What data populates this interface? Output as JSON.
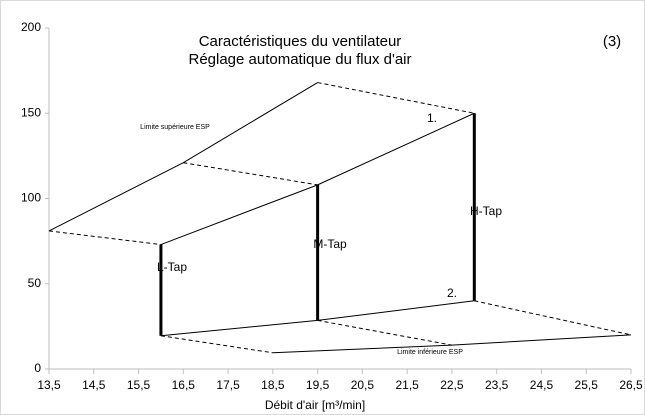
{
  "chart_data": {
    "type": "line",
    "title": "Caractéristiques du ventilateur",
    "subtitle": "Réglage automatique du flux d'air",
    "figure_number": "(3)",
    "x_label": "Débit d'air [m³/min]",
    "annotations": [
      "Limite supérieure ESP",
      "Limite inférieure ESP",
      "1.",
      "2.",
      "L-Tap",
      "M-Tap",
      "H-Tap"
    ],
    "xlim": [
      13.5,
      26.5
    ],
    "xticks": [
      {
        "value": 13.5,
        "label": "13,5"
      },
      {
        "value": 14.5,
        "label": "14,5"
      },
      {
        "value": 15.5,
        "label": "15,5"
      },
      {
        "value": 16.5,
        "label": "16,5"
      },
      {
        "value": 17.5,
        "label": "17,5"
      },
      {
        "value": 18.5,
        "label": "18,5"
      },
      {
        "value": 19.5,
        "label": "19,5"
      },
      {
        "value": 20.5,
        "label": "20,5"
      },
      {
        "value": 21.5,
        "label": "21,5"
      },
      {
        "value": 22.5,
        "label": "22,5"
      },
      {
        "value": 23.5,
        "label": "23,5"
      },
      {
        "value": 24.5,
        "label": "24,5"
      },
      {
        "value": 25.5,
        "label": "25,5"
      },
      {
        "value": 26.5,
        "label": "26,5"
      }
    ],
    "ylim": [
      0,
      200
    ],
    "yticks": [
      0,
      50,
      100,
      150,
      200
    ],
    "grid": false,
    "series": [
      {
        "color": "#000000",
        "dash": false,
        "width": 1,
        "x": [
          13.5,
          16.5,
          19.5
        ],
        "values": [
          81,
          121,
          168
        ]
      },
      {
        "color": "#000000",
        "dash": false,
        "width": 1,
        "x": [
          16,
          19.5,
          23
        ],
        "values": [
          73,
          108,
          150
        ]
      },
      {
        "color": "#000000",
        "dash": false,
        "width": 1,
        "x": [
          16,
          19.5,
          23
        ],
        "values": [
          19.5,
          28.5,
          40
        ]
      },
      {
        "color": "#000000",
        "dash": false,
        "width": 1,
        "x": [
          18.5,
          22.5,
          26.5
        ],
        "values": [
          9.5,
          14,
          20
        ]
      },
      {
        "color": "#000000",
        "dash": true,
        "width": 1,
        "x": [
          13.5,
          16
        ],
        "values": [
          81,
          73
        ]
      },
      {
        "color": "#000000",
        "dash": true,
        "width": 1,
        "x": [
          16.5,
          19.5
        ],
        "values": [
          121,
          108
        ]
      },
      {
        "color": "#000000",
        "dash": true,
        "width": 1,
        "x": [
          19.5,
          23
        ],
        "values": [
          168,
          150
        ]
      },
      {
        "color": "#000000",
        "dash": true,
        "width": 1,
        "x": [
          16,
          18.5
        ],
        "values": [
          19.5,
          9.5
        ]
      },
      {
        "color": "#000000",
        "dash": true,
        "width": 1,
        "x": [
          19.5,
          22.5
        ],
        "values": [
          28.5,
          14
        ]
      },
      {
        "color": "#000000",
        "dash": true,
        "width": 1,
        "x": [
          23,
          26.5
        ],
        "values": [
          40,
          20
        ]
      },
      {
        "color": "#000000",
        "dash": false,
        "width": 3,
        "x": [
          16,
          16
        ],
        "values": [
          19.5,
          73
        ]
      },
      {
        "color": "#000000",
        "dash": false,
        "width": 3,
        "x": [
          19.5,
          19.5
        ],
        "values": [
          28.5,
          108
        ]
      },
      {
        "color": "#000000",
        "dash": false,
        "width": 3,
        "x": [
          23,
          23
        ],
        "values": [
          40,
          150
        ]
      }
    ]
  }
}
